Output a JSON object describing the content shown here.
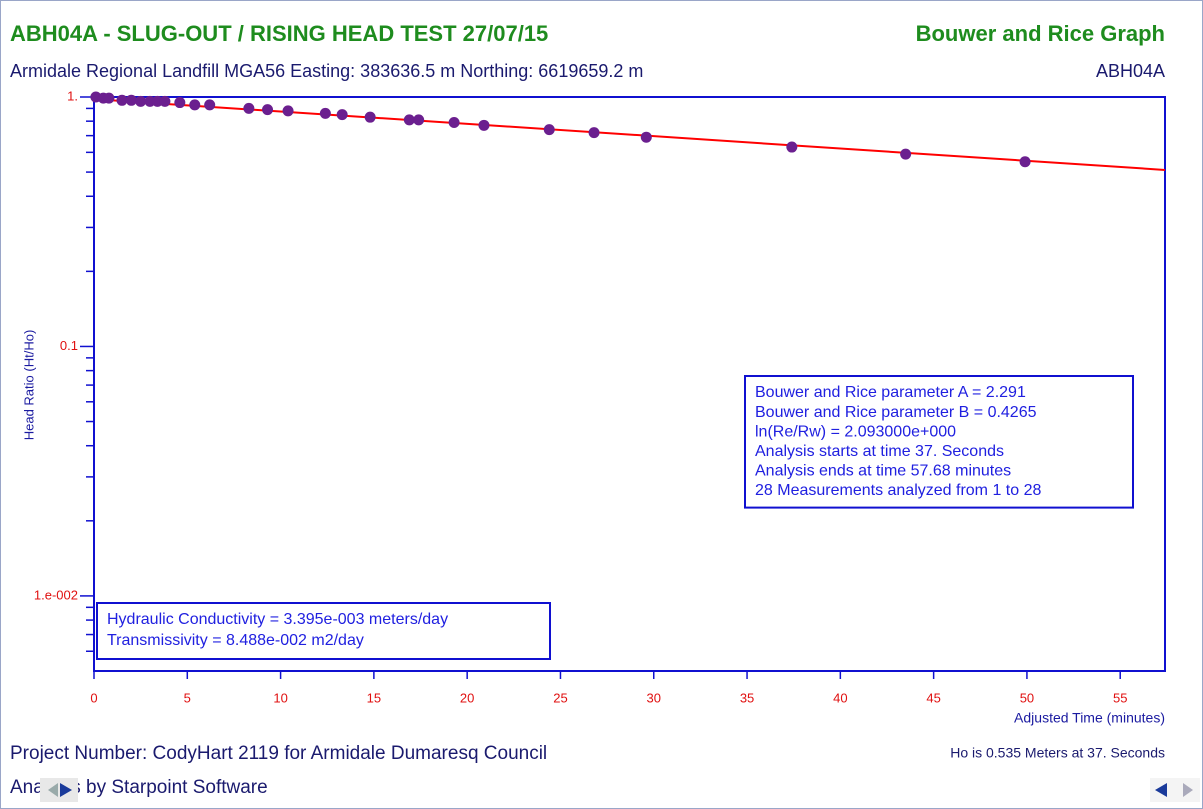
{
  "chart_data": {
    "type": "scatter",
    "title": "ABH04A - SLUG-OUT / RISING HEAD TEST 27/07/15",
    "title_right": "Bouwer and Rice Graph",
    "subtitle": "Armidale Regional Landfill MGA56 Easting: 383636.5 m Northing: 6619659.2 m",
    "subtitle_right": "ABH04A",
    "ylabel": "Head Ratio (Ht/Ho)",
    "xlabel": "Adjusted Time (minutes)",
    "log_y": true,
    "xlim": [
      0,
      57.4
    ],
    "ylim": [
      0.005,
      1
    ],
    "xticks": [
      0,
      5,
      10,
      15,
      20,
      25,
      30,
      35,
      40,
      45,
      50,
      55
    ],
    "yticks": [
      {
        "value": 1,
        "label": "1."
      },
      0.1,
      {
        "value": 0.01,
        "label": "1.e-002"
      }
    ],
    "color": "#6b1f8f",
    "x": [
      0.1,
      0.5,
      0.8,
      1.5,
      2.0,
      2.5,
      3.0,
      3.4,
      3.8,
      4.6,
      5.4,
      6.2,
      8.3,
      9.3,
      10.4,
      12.4,
      13.3,
      14.8,
      16.9,
      17.4,
      19.3,
      20.9,
      24.4,
      26.8,
      29.6,
      37.4,
      43.5,
      49.9
    ],
    "values": [
      1.0,
      0.99,
      0.99,
      0.97,
      0.97,
      0.96,
      0.96,
      0.96,
      0.96,
      0.95,
      0.93,
      0.93,
      0.9,
      0.89,
      0.88,
      0.86,
      0.85,
      0.83,
      0.81,
      0.81,
      0.79,
      0.77,
      0.74,
      0.72,
      0.69,
      0.63,
      0.59,
      0.55
    ],
    "fit_line": {
      "x": [
        0,
        57.4
      ],
      "values": [
        0.98,
        0.51
      ],
      "color": "#ff0000"
    },
    "info_box": [
      "Bouwer and Rice parameter A = 2.291",
      "Bouwer and Rice parameter B = 0.4265",
      "ln(Re/Rw) = 2.093000e+000",
      "Analysis starts at time 37. Seconds",
      "Analysis ends at time 57.68 minutes",
      "28 Measurements analyzed from 1 to 28"
    ],
    "result_box": [
      "Hydraulic Conductivity = 3.395e-003 meters/day",
      "Transmissivity = 8.488e-002 m2/day"
    ],
    "footer_left": [
      "Project Number: CodyHart 2119 for Armidale Dumaresq Council",
      "Analysis by Starpoint Software"
    ],
    "footer_right": "Ho is 0.535 Meters at 37. Seconds"
  }
}
